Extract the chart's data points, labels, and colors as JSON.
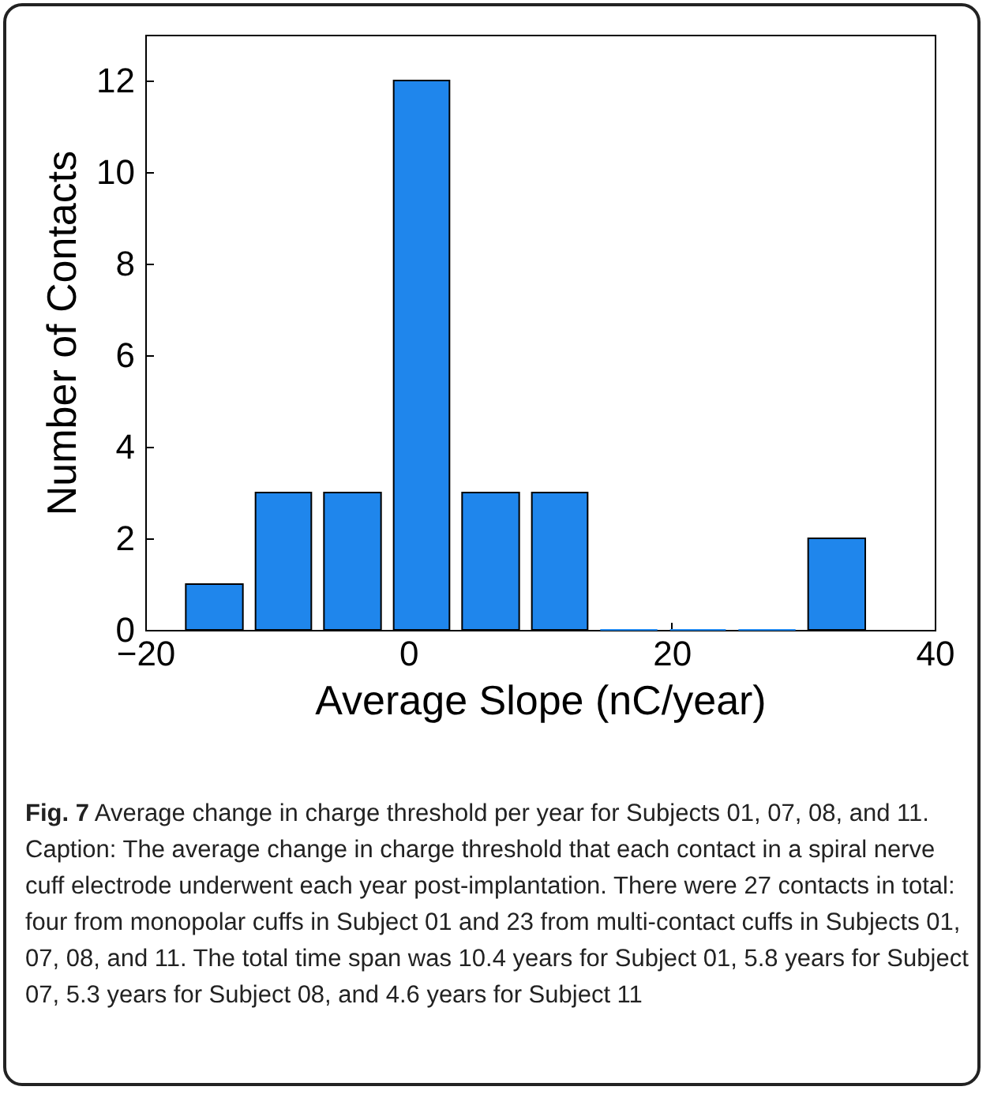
{
  "chart_data": {
    "type": "histogram",
    "xlabel": "Average Slope (nC/year)",
    "ylabel": "Number of Contacts",
    "bins": [
      -17.4,
      -12.1,
      -6.9,
      -1.6,
      3.6,
      8.9,
      14.1,
      19.4,
      24.6,
      29.9,
      35.2
    ],
    "values": [
      1,
      3,
      3,
      12,
      3,
      3,
      0,
      0,
      0,
      2
    ],
    "color": "#1f86ec",
    "xlim": [
      -20,
      40
    ],
    "xticks": [
      -20,
      0,
      20,
      40
    ],
    "ylim": [
      0,
      13
    ],
    "yticks": [
      0,
      2,
      4,
      6,
      8,
      10,
      12
    ],
    "grid": false,
    "annotations": [
      "Fig. 7 Average change in charge threshold per year for Subjects 01, 07, 08, and 11. Caption: The average change in charge threshold that each contact in a spiral nerve cuff electrode underwent each year post-implantation. There were 27 contacts in total: four from monopolar cuffs in Subject 01 and 23 from multi-contact cuffs in Subjects 01, 07, 08, and 11. The total time span was 10.4 years for Subject 01, 5.8 years for Subject 07, 5.3 years for Subject 08, and 4.6 years for Subject 11"
    ]
  }
}
